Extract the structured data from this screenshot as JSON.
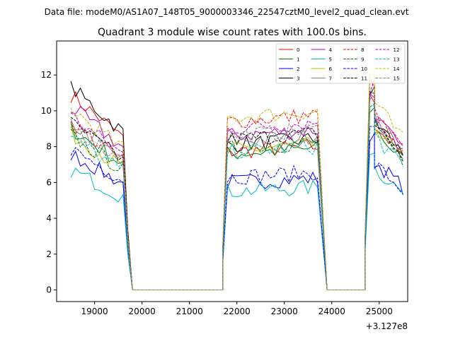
{
  "figure": {
    "suptitle": "Data file: modeM0/AS1A07_148T05_9000003346_22547cztM0_level2_quad_clean.evt"
  },
  "chart_data": {
    "type": "line",
    "title": "Quadrant 3 module wise count rates with 100.0s bins.",
    "xlabel": "",
    "ylabel": "",
    "offset_label": "+3.127e8",
    "xlim": [
      18200,
      25600
    ],
    "ylim": [
      -0.65,
      13.9
    ],
    "xticks": [
      19000,
      20000,
      21000,
      22000,
      23000,
      24000,
      25000
    ],
    "yticks": [
      0,
      2,
      4,
      6,
      8,
      10,
      12
    ],
    "grid": false,
    "legend_position": "top-right",
    "series": [
      {
        "name": "0",
        "color": "#ff0000",
        "dash": "solid",
        "levels": [
          10.9,
          7.7,
          10.6,
          9.3
        ]
      },
      {
        "name": "1",
        "color": "#008000",
        "dash": "solid",
        "levels": [
          9.0,
          7.6,
          10.0,
          9.0
        ]
      },
      {
        "name": "2",
        "color": "#0000ff",
        "dash": "solid",
        "levels": [
          7.6,
          6.0,
          8.4,
          7.2
        ]
      },
      {
        "name": "3",
        "color": "#000000",
        "dash": "solid",
        "levels": [
          11.3,
          8.1,
          11.0,
          9.5
        ]
      },
      {
        "name": "4",
        "color": "#bf00bf",
        "dash": "solid",
        "levels": [
          10.2,
          8.6,
          10.8,
          9.7
        ]
      },
      {
        "name": "5",
        "color": "#00bfbf",
        "dash": "solid",
        "levels": [
          6.7,
          5.5,
          7.9,
          6.8
        ]
      },
      {
        "name": "6",
        "color": "#bfbf00",
        "dash": "solid",
        "levels": [
          8.7,
          7.8,
          11.6,
          9.2
        ]
      },
      {
        "name": "7",
        "color": "#808080",
        "dash": "solid",
        "levels": [
          9.3,
          8.3,
          11.2,
          9.6
        ]
      },
      {
        "name": "8",
        "color": "#ff0000",
        "dash": "dashed",
        "levels": [
          9.3,
          9.4,
          11.6,
          9.8
        ]
      },
      {
        "name": "9",
        "color": "#008000",
        "dash": "dashed",
        "levels": [
          8.6,
          7.9,
          10.3,
          9.0
        ]
      },
      {
        "name": "10",
        "color": "#0000ff",
        "dash": "dashed",
        "levels": [
          7.9,
          6.3,
          8.9,
          7.0
        ]
      },
      {
        "name": "11",
        "color": "#000000",
        "dash": "dashed",
        "levels": [
          9.3,
          8.4,
          11.0,
          9.3
        ]
      },
      {
        "name": "12",
        "color": "#bf00bf",
        "dash": "dashed",
        "levels": [
          9.7,
          9.0,
          11.4,
          9.8
        ]
      },
      {
        "name": "13",
        "color": "#00bfbf",
        "dash": "dashed",
        "levels": [
          8.5,
          7.7,
          10.2,
          8.6
        ]
      },
      {
        "name": "14",
        "color": "#bfbf00",
        "dash": "dashed",
        "levels": [
          10.1,
          9.6,
          12.2,
          10.5
        ]
      },
      {
        "name": "15",
        "color": "#808080",
        "dash": "dashed",
        "levels": [
          9.2,
          8.6,
          11.1,
          9.5
        ]
      }
    ],
    "segments": [
      {
        "x_start": 18500,
        "x_end": 19600,
        "decline": 0.22
      },
      {
        "x_start": 21800,
        "x_end": 23700,
        "decline": -0.04
      },
      {
        "x_start": 24800,
        "x_end": 24900,
        "decline": 0.0
      },
      {
        "x_start": 24900,
        "x_end": 25550,
        "decline": 0.22
      }
    ],
    "gaps": [
      {
        "x_start": 19800,
        "x_end": 21700,
        "value": 0
      },
      {
        "x_start": 23900,
        "x_end": 24700,
        "value": 0
      }
    ],
    "bin_width": 100
  }
}
